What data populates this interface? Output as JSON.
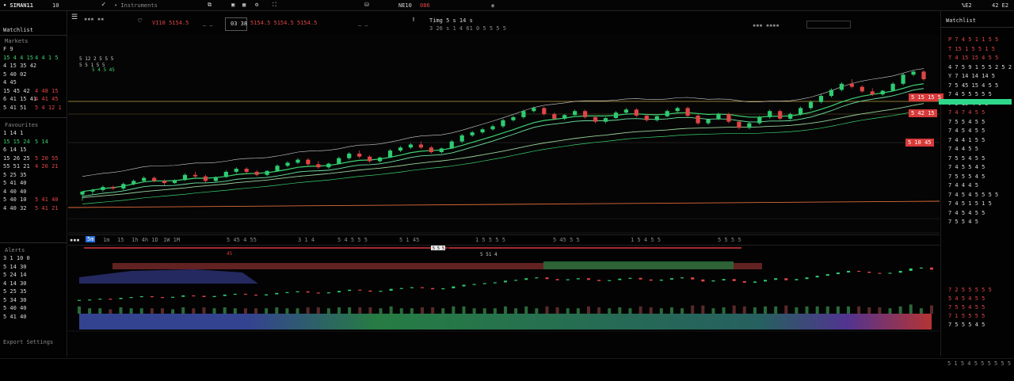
{
  "topbar": {
    "app_title": "• SIMAN11",
    "app_num": "10",
    "watchlist_tab": "• Instruments",
    "indicator_readout": "NE10",
    "indicator_value": "086",
    "right_value_1": "%E2",
    "right_value_2": "42 E2"
  },
  "toolbar": {
    "symbol_value": "VI10 5154.5",
    "ohlc_label": "03 38",
    "price_fields": "5154.5 5154.5 5154.5",
    "ticker_title": "Timg 5 s 14 s",
    "ticker_sub": "3 26 s 1 4 61 0 5 5 5 5"
  },
  "left_panel": {
    "header": "Watchlist",
    "sections": [
      {
        "title": "Markets",
        "rows": [
          {
            "sym": "F 9",
            "chg": "",
            "color": "w"
          },
          {
            "sym": "15 4 4 15",
            "chg": "4 4 1 5",
            "color": "g"
          },
          {
            "sym": "4 15 35 42",
            "chg": "",
            "color": "w"
          },
          {
            "sym": "5 40 02",
            "chg": "",
            "color": "w"
          },
          {
            "sym": "4 45",
            "chg": "",
            "color": "w"
          },
          {
            "sym": "15 45 42",
            "chg": "4 48 15",
            "color": "r"
          },
          {
            "sym": "6 41 15 41",
            "chg": "4 41 45",
            "color": "r"
          },
          {
            "sym": "5 41 51",
            "chg": "5 4 12 1",
            "color": "r"
          }
        ]
      },
      {
        "title": "Favourites",
        "rows": [
          {
            "sym": "1 14 1",
            "chg": "",
            "color": "w"
          },
          {
            "sym": "15 15 24",
            "chg": "5 14",
            "color": "g"
          },
          {
            "sym": "6 14 15",
            "chg": "",
            "color": "w"
          },
          {
            "sym": "15 26 25",
            "chg": "5 20 55",
            "color": "r"
          },
          {
            "sym": "55 51 21",
            "chg": "4 20 21",
            "color": "r"
          },
          {
            "sym": "5 25 35",
            "chg": "",
            "color": "w"
          },
          {
            "sym": "5 41 40",
            "chg": "",
            "color": "w"
          },
          {
            "sym": "4 40 40",
            "chg": "",
            "color": "w"
          },
          {
            "sym": "5 40 10",
            "chg": "5 41 40",
            "color": "r"
          },
          {
            "sym": "4 40 32",
            "chg": "5 41 21",
            "color": "r"
          }
        ]
      },
      {
        "title": "Alerts",
        "rows": [
          {
            "sym": "3 1 10 0",
            "chg": "",
            "color": "w"
          },
          {
            "sym": "5 14 30",
            "chg": "",
            "color": "w"
          },
          {
            "sym": "5 24 14",
            "chg": "",
            "color": "w"
          },
          {
            "sym": "4 14 30",
            "chg": "",
            "color": "w"
          },
          {
            "sym": "5 25 35",
            "chg": "",
            "color": "w"
          },
          {
            "sym": "5 34 30",
            "chg": "",
            "color": "w"
          },
          {
            "sym": "5 40 40",
            "chg": "",
            "color": "w"
          },
          {
            "sym": "5 41 40",
            "chg": "",
            "color": "w"
          }
        ]
      }
    ],
    "footer": "Export Settings"
  },
  "right_panel": {
    "header": "Watchlist",
    "rows": [
      {
        "text": "P 7 4 5 1 1 5 5",
        "color": "r"
      },
      {
        "text": "T 15 1 5 5 1 5",
        "color": "r"
      },
      {
        "text": "T 4 15 15 4 5 5",
        "color": "r"
      },
      {
        "text": "4 7 5 9 1 5 5 2 5 2",
        "color": "w"
      },
      {
        "text": "Y 7 14 14 14 5",
        "color": "w"
      },
      {
        "text": "7 5 45 15 4 5 5",
        "color": "w"
      },
      {
        "text": "7 4 5 5 5 5 5",
        "color": "w"
      },
      {
        "text": "7 5 15 4 5 5",
        "color": "w"
      },
      {
        "text": "7 4 7 4 5 5",
        "color": "r"
      },
      {
        "text": "7 5 5 4 5 5",
        "color": "w"
      },
      {
        "text": "7 4 5 4 5 5",
        "color": "w"
      },
      {
        "text": "7 4 4 1 5 5",
        "color": "w"
      },
      {
        "text": "7 4 4 5 5",
        "color": "w"
      },
      {
        "text": "7 5 5 4 5 5",
        "color": "w"
      },
      {
        "text": "7 4 5 5 4 5",
        "color": "w"
      },
      {
        "text": "7 5 5 5 4 5",
        "color": "w"
      },
      {
        "text": "7 4 4 4 5",
        "color": "w"
      },
      {
        "text": "7 4 5 4 5 5 5 5",
        "color": "w"
      },
      {
        "text": "7 4 5 1 5 1 5",
        "color": "w"
      },
      {
        "text": "7 4 5 4 5 5",
        "color": "w"
      },
      {
        "text": "7 5 5 4 5",
        "color": "w"
      }
    ],
    "depth_rows": [
      {
        "text": "7 2 5 5 5 5 5",
        "color": "r"
      },
      {
        "text": "5 4 5 4 5 5",
        "color": "r"
      },
      {
        "text": "7 5 5 4 5 5",
        "color": "r"
      },
      {
        "text": "7 1 5 5 5 5",
        "color": "r"
      },
      {
        "text": "7 5 5 5 4 5",
        "color": "w"
      }
    ]
  },
  "price_tags": {
    "tag_1": "5 15 15 5",
    "tag_2": "5 42 15",
    "tag_3": "5 10 45"
  },
  "legend": {
    "label_1": "5 12 2 5 5 5",
    "label_2": "5 5 1 5 5",
    "label_3": "5 4 5 45"
  },
  "timeframe_bar": {
    "active": "5m",
    "items": [
      "1m",
      "15",
      "1h 4h 1D",
      "1W 1M",
      "5 45 4 55",
      "3 1 4",
      "5 4 5 5 5",
      "5 1 45",
      "1 5 5 5 5",
      "5 45 5 5",
      "1 5 4 5 5",
      "5 5 5 5"
    ]
  },
  "lower_pane": {
    "marker_value": "5 5 5 4",
    "label_1": "45",
    "label_2": "5 51 4"
  },
  "bottombar": {
    "status": "5 1 5 4 5 5 5 5 5 5"
  },
  "colors": {
    "up": "#2ecc71",
    "down": "#e04545",
    "ma_1": "#3bd16f",
    "ma_2": "#6fe3a0",
    "ma_3": "#9ad19a",
    "envelope": "#cfcfcf",
    "support": "#b8a040",
    "resistance": "#e06a3a",
    "volume_blue": "#3a4aa0",
    "volume_green": "#2a8a4a",
    "volume_red": "#c83a3a"
  },
  "chart_data": {
    "type": "candlestick",
    "candles": [
      [
        30,
        31,
        28,
        31
      ],
      [
        31,
        32,
        30,
        31.5
      ],
      [
        31.5,
        33,
        31,
        32.5
      ],
      [
        32.5,
        33,
        31.5,
        32
      ],
      [
        32,
        34,
        31.5,
        33.5
      ],
      [
        33.5,
        35,
        33,
        34.5
      ],
      [
        34.5,
        36,
        34,
        35.5
      ],
      [
        35.5,
        36,
        34,
        34.5
      ],
      [
        34.5,
        35,
        33,
        33.8
      ],
      [
        33.8,
        35,
        33.5,
        34.8
      ],
      [
        34.8,
        37,
        34.5,
        36.5
      ],
      [
        36.5,
        37.5,
        35.5,
        36
      ],
      [
        36,
        36.5,
        34,
        34.5
      ],
      [
        34.5,
        36,
        34,
        35.8
      ],
      [
        35.8,
        38,
        35.5,
        37.5
      ],
      [
        37.5,
        39,
        37,
        38.5
      ],
      [
        38.5,
        39,
        37,
        37.5
      ],
      [
        37.5,
        38,
        36,
        36.5
      ],
      [
        36.5,
        38,
        36,
        37.8
      ],
      [
        37.8,
        40,
        37.5,
        39.5
      ],
      [
        39.5,
        41,
        39,
        40.5
      ],
      [
        40.5,
        42,
        40,
        41.5
      ],
      [
        41.5,
        42,
        39.5,
        40
      ],
      [
        40,
        41,
        38.5,
        39
      ],
      [
        39,
        40.5,
        38.5,
        40.2
      ],
      [
        40.2,
        42.5,
        40,
        42
      ],
      [
        42,
        44,
        41.5,
        43.5
      ],
      [
        43.5,
        44.5,
        42,
        42.5
      ],
      [
        42.5,
        43,
        40.5,
        41
      ],
      [
        41,
        42.5,
        40.5,
        42.2
      ],
      [
        42.2,
        45,
        42,
        44.5
      ],
      [
        44.5,
        46,
        44,
        45.5
      ],
      [
        45.5,
        47,
        45,
        46.5
      ],
      [
        46.5,
        47.5,
        45,
        45.5
      ],
      [
        45.5,
        46,
        43.5,
        44
      ],
      [
        44,
        45.5,
        43.5,
        45.2
      ],
      [
        45.2,
        48,
        45,
        47.5
      ],
      [
        47.5,
        50,
        47,
        49.5
      ],
      [
        49.5,
        51,
        49,
        50.5
      ],
      [
        50.5,
        52,
        50,
        51.5
      ],
      [
        51.5,
        53,
        51,
        52.5
      ],
      [
        52.5,
        55,
        52,
        54.5
      ],
      [
        54.5,
        56,
        54,
        55.5
      ],
      [
        55.5,
        58,
        55,
        57.5
      ],
      [
        57.5,
        59,
        57,
        58.5
      ],
      [
        58.5,
        59,
        56,
        56.5
      ],
      [
        56.5,
        57,
        54.5,
        55
      ],
      [
        55,
        56.5,
        54.5,
        56.2
      ],
      [
        56.2,
        58,
        56,
        57.5
      ],
      [
        57.5,
        58,
        55,
        55.5
      ],
      [
        55.5,
        56,
        53.5,
        54
      ],
      [
        54,
        55.5,
        53.5,
        55.2
      ],
      [
        55.2,
        57.5,
        55,
        57
      ],
      [
        57,
        58.5,
        56.5,
        58
      ],
      [
        58,
        58.5,
        55.5,
        56
      ],
      [
        56,
        56.5,
        54,
        54.5
      ],
      [
        54.5,
        56,
        54,
        55.8
      ],
      [
        55.8,
        58,
        55.5,
        57.5
      ],
      [
        57.5,
        59,
        57,
        58.5
      ],
      [
        58.5,
        59,
        55.5,
        56
      ],
      [
        56,
        56.5,
        53,
        53.5
      ],
      [
        53.5,
        55,
        53,
        54.8
      ],
      [
        54.8,
        57,
        54.5,
        56.5
      ],
      [
        56.5,
        57,
        53.5,
        54
      ],
      [
        54,
        54.5,
        51.5,
        52
      ],
      [
        52,
        54,
        51.5,
        53.5
      ],
      [
        53.5,
        56,
        53,
        55.5
      ],
      [
        55.5,
        58,
        55,
        57.5
      ],
      [
        57.5,
        58,
        54.5,
        55
      ],
      [
        55,
        57,
        54.5,
        56.5
      ],
      [
        56.5,
        59,
        56,
        58.5
      ],
      [
        58.5,
        61,
        58,
        60.5
      ],
      [
        60.5,
        63,
        60,
        62.5
      ],
      [
        62.5,
        65,
        62,
        64.5
      ],
      [
        64.5,
        67,
        64,
        66.5
      ],
      [
        66.5,
        68,
        65,
        65.5
      ],
      [
        65.5,
        66,
        63.5,
        64
      ],
      [
        64,
        65,
        62.5,
        63
      ],
      [
        63,
        64.5,
        62.5,
        64.2
      ],
      [
        64.2,
        67,
        64,
        66.5
      ],
      [
        66.5,
        70,
        66,
        69.5
      ],
      [
        69.5,
        71,
        69,
        70.5
      ],
      [
        70.5,
        71,
        67.5,
        68
      ]
    ],
    "ma_fast": [
      31,
      31.5,
      32,
      32.3,
      32.8,
      33.5,
      34.2,
      34.5,
      34.5,
      34.6,
      35,
      35.4,
      35.4,
      35.6,
      36,
      36.6,
      36.9,
      37,
      37.2,
      37.7,
      38.3,
      39,
      39.3,
      39.4,
      39.6,
      40.1,
      40.8,
      41.3,
      41.4,
      41.7,
      42.3,
      43,
      43.8,
      44.3,
      44.5,
      44.7,
      45.3,
      46.2,
      47.2,
      48.2,
      49.2,
      50.3,
      51.4,
      52.6,
      53.7,
      54.4,
      54.8,
      55.2,
      55.7,
      55.9,
      55.9,
      55.9,
      56.1,
      56.5,
      56.6,
      56.4,
      56.3,
      56.5,
      56.9,
      57,
      56.7,
      56.4,
      56.5,
      56.4,
      55.9,
      55.5,
      55.5,
      55.8,
      55.8,
      55.9,
      56.4,
      57.1,
      58.1,
      59.2,
      60.5,
      61.6,
      62.4,
      63,
      63.5,
      64.1,
      65,
      66,
      66.5
    ],
    "ma_slow": [
      29,
      29.3,
      29.6,
      29.9,
      30.2,
      30.6,
      31,
      31.3,
      31.6,
      31.9,
      32.2,
      32.6,
      32.9,
      33.2,
      33.5,
      33.9,
      34.2,
      34.5,
      34.8,
      35.2,
      35.6,
      36,
      36.3,
      36.6,
      36.9,
      37.3,
      37.7,
      38.1,
      38.4,
      38.7,
      39.1,
      39.5,
      40,
      40.4,
      40.8,
      41.1,
      41.5,
      42,
      42.5,
      43.1,
      43.7,
      44.3,
      45,
      45.7,
      46.4,
      47,
      47.5,
      48,
      48.5,
      48.9,
      49.3,
      49.6,
      50,
      50.4,
      50.7,
      50.9,
      51.1,
      51.3,
      51.6,
      51.8,
      51.9,
      52,
      52.1,
      52.2,
      52.2,
      52.2,
      52.3,
      52.5,
      52.6,
      52.8,
      53.1,
      53.5,
      54,
      54.6,
      55.3,
      56,
      56.6,
      57.1,
      57.6,
      58.1,
      58.7,
      59.4,
      60
    ],
    "envelope": [
      36,
      36.5,
      37,
      37.3,
      37.8,
      38.5,
      39.2,
      39.5,
      39.5,
      39.6,
      40,
      40.4,
      40.4,
      40.6,
      41,
      41.6,
      41.9,
      42,
      42.2,
      42.7,
      43.3,
      44,
      44.3,
      44.4,
      44.6,
      45.1,
      45.8,
      46.3,
      46.4,
      46.7,
      47.3,
      48,
      48.8,
      49.3,
      49.5,
      49.7,
      50.3,
      51.2,
      52.2,
      53.2,
      54.2,
      55.3,
      56.4,
      57.6,
      58.7,
      59.4,
      59.8,
      60.2,
      60.7,
      60.9,
      60.9,
      60.9,
      61.1,
      61.5,
      61.6,
      61.4,
      61.3,
      61.5,
      61.9,
      62,
      61.7,
      61.4,
      61.5,
      61.4,
      60.9,
      60.5,
      60.5,
      60.8,
      60.8,
      60.9,
      61.4,
      62.1,
      63.1,
      64.2,
      65.5,
      66.6,
      67.4,
      68,
      68.5,
      69.1,
      70,
      71,
      71.5
    ],
    "ylim": [
      20,
      80
    ]
  }
}
